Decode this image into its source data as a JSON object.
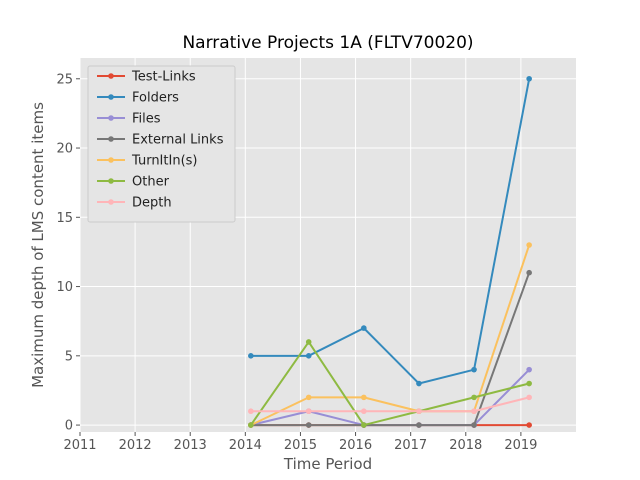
{
  "chart_data": {
    "type": "line",
    "title": "Narrative Projects 1A (FLTV70020)",
    "xlabel": "Time Period",
    "ylabel": "Maximum depth of LMS content items",
    "xlim": [
      2011.0,
      2020.0
    ],
    "ylim": [
      -0.5,
      26.5
    ],
    "xticks": [
      2011,
      2012,
      2013,
      2014,
      2015,
      2016,
      2017,
      2018,
      2019
    ],
    "yticks": [
      0,
      5,
      10,
      15,
      20,
      25
    ],
    "grid": true,
    "legend_position": "upper-left",
    "x": [
      2014.1,
      2015.15,
      2016.15,
      2017.15,
      2018.15,
      2019.15
    ],
    "series": [
      {
        "name": "Test-Links",
        "color": "#E24A33",
        "values": [
          0,
          0,
          0,
          0,
          0,
          0
        ]
      },
      {
        "name": "Folders",
        "color": "#348ABD",
        "values": [
          5,
          5,
          7,
          3,
          4,
          25
        ]
      },
      {
        "name": "Files",
        "color": "#988ED5",
        "values": [
          0,
          1,
          0,
          0,
          0,
          4
        ]
      },
      {
        "name": "External Links",
        "color": "#777777",
        "values": [
          0,
          0,
          0,
          0,
          0,
          11
        ]
      },
      {
        "name": "TurnItIn(s)",
        "color": "#FBC15E",
        "values": [
          0,
          2,
          2,
          1,
          1,
          13
        ]
      },
      {
        "name": "Other",
        "color": "#8EBA42",
        "values": [
          0,
          6,
          0,
          1,
          2,
          3
        ]
      },
      {
        "name": "Depth",
        "color": "#FFB5B8",
        "values": [
          1,
          1,
          1,
          1,
          1,
          2
        ]
      }
    ]
  }
}
